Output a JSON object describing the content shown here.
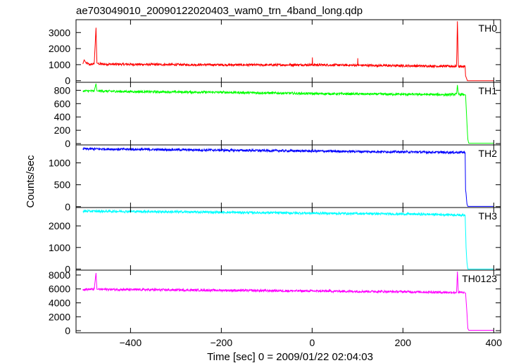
{
  "figure": {
    "title": "ae703049010_20090122020403_wam0_trn_4band_long.qdp",
    "ylabel": "Counts/sec",
    "xlabel": "Time [sec] 0 = 2009/01/22 02:04:03"
  },
  "chart_data": {
    "type": "line",
    "title": "ae703049010_20090122020403_wam0_trn_4band_long.qdp",
    "xlabel": "Time [sec] 0 = 2009/01/22 02:04:03",
    "ylabel": "Counts/sec",
    "xlim": [
      -520,
      415
    ],
    "x_ticks": [
      -400,
      -200,
      0,
      200,
      400
    ],
    "x_tick_labels": [
      "−400",
      "−200",
      "0",
      "200",
      "400"
    ],
    "panels": [
      {
        "name": "TH0",
        "color": "#ff0000",
        "ylim": [
          -100,
          3800
        ],
        "y_ticks": [
          0,
          1000,
          2000,
          3000
        ],
        "series": [
          {
            "x": [
              -505,
              -502,
              -498,
              -490,
              -480,
              -476,
              -474,
              -470,
              -460,
              -400,
              -300,
              -200,
              -100,
              0,
              0.5,
              1,
              100,
              100.5,
              101,
              200,
              300,
              318,
              320,
              322,
              330,
              337,
              338,
              342,
              360,
              400
            ],
            "y": [
              1050,
              1300,
              1100,
              1000,
              1050,
              3300,
              1100,
              1050,
              1030,
              1020,
              1000,
              990,
              980,
              990,
              1450,
              990,
              960,
              1400,
              960,
              930,
              900,
              900,
              3700,
              900,
              890,
              880,
              300,
              0,
              0,
              0
            ]
          }
        ]
      },
      {
        "name": "TH1",
        "color": "#00ff00",
        "ylim": [
          -20,
          920
        ],
        "y_ticks": [
          0,
          200,
          400,
          600,
          800
        ],
        "series": [
          {
            "x": [
              -505,
              -480,
              -476,
              -474,
              -470,
              -400,
              -300,
              -200,
              -100,
              0,
              100,
              200,
              300,
              318,
              320,
              322,
              335,
              338,
              341,
              343,
              345,
              360,
              400
            ],
            "y": [
              790,
              790,
              900,
              790,
              790,
              780,
              775,
              770,
              760,
              750,
              745,
              740,
              735,
              740,
              880,
              740,
              735,
              730,
              300,
              60,
              5,
              5,
              5
            ]
          }
        ]
      },
      {
        "name": "TH2",
        "color": "#0000ff",
        "ylim": [
          -20,
          1410
        ],
        "y_ticks": [
          0,
          500,
          1000
        ],
        "series": [
          {
            "x": [
              -505,
              -400,
              -300,
              -200,
              -100,
              0,
              100,
              200,
              300,
              330,
              337,
              338,
              339,
              341,
              343,
              360,
              400
            ],
            "y": [
              1320,
              1310,
              1300,
              1290,
              1280,
              1270,
              1260,
              1250,
              1240,
              1240,
              1240,
              380,
              300,
              60,
              5,
              5,
              5
            ]
          }
        ]
      },
      {
        "name": "TH3",
        "color": "#00ffff",
        "ylim": [
          -50,
          2850
        ],
        "y_ticks": [
          0,
          1000,
          2000
        ],
        "series": [
          {
            "x": [
              -505,
              -400,
              -300,
              -200,
              -100,
              0,
              100,
              200,
              300,
              330,
              337,
              339,
              341,
              343,
              360,
              400
            ],
            "y": [
              2680,
              2670,
              2650,
              2630,
              2610,
              2590,
              2570,
              2550,
              2520,
              2500,
              2500,
              1000,
              300,
              0,
              0,
              0
            ]
          }
        ]
      },
      {
        "name": "TH0123",
        "color": "#ff00ff",
        "ylim": [
          -300,
          8700
        ],
        "y_ticks": [
          0,
          2000,
          4000,
          6000,
          8000
        ],
        "series": [
          {
            "x": [
              -505,
              -480,
              -476,
              -474,
              -470,
              -400,
              -300,
              -200,
              -100,
              0,
              100,
              200,
              300,
              318,
              320,
              322,
              335,
              338,
              341,
              343,
              345,
              360,
              400
            ],
            "y": [
              5950,
              5950,
              8300,
              5950,
              5950,
              5900,
              5850,
              5800,
              5750,
              5700,
              5650,
              5600,
              5500,
              5500,
              8500,
              5500,
              5450,
              5400,
              2500,
              300,
              50,
              50,
              50
            ]
          }
        ]
      }
    ]
  }
}
